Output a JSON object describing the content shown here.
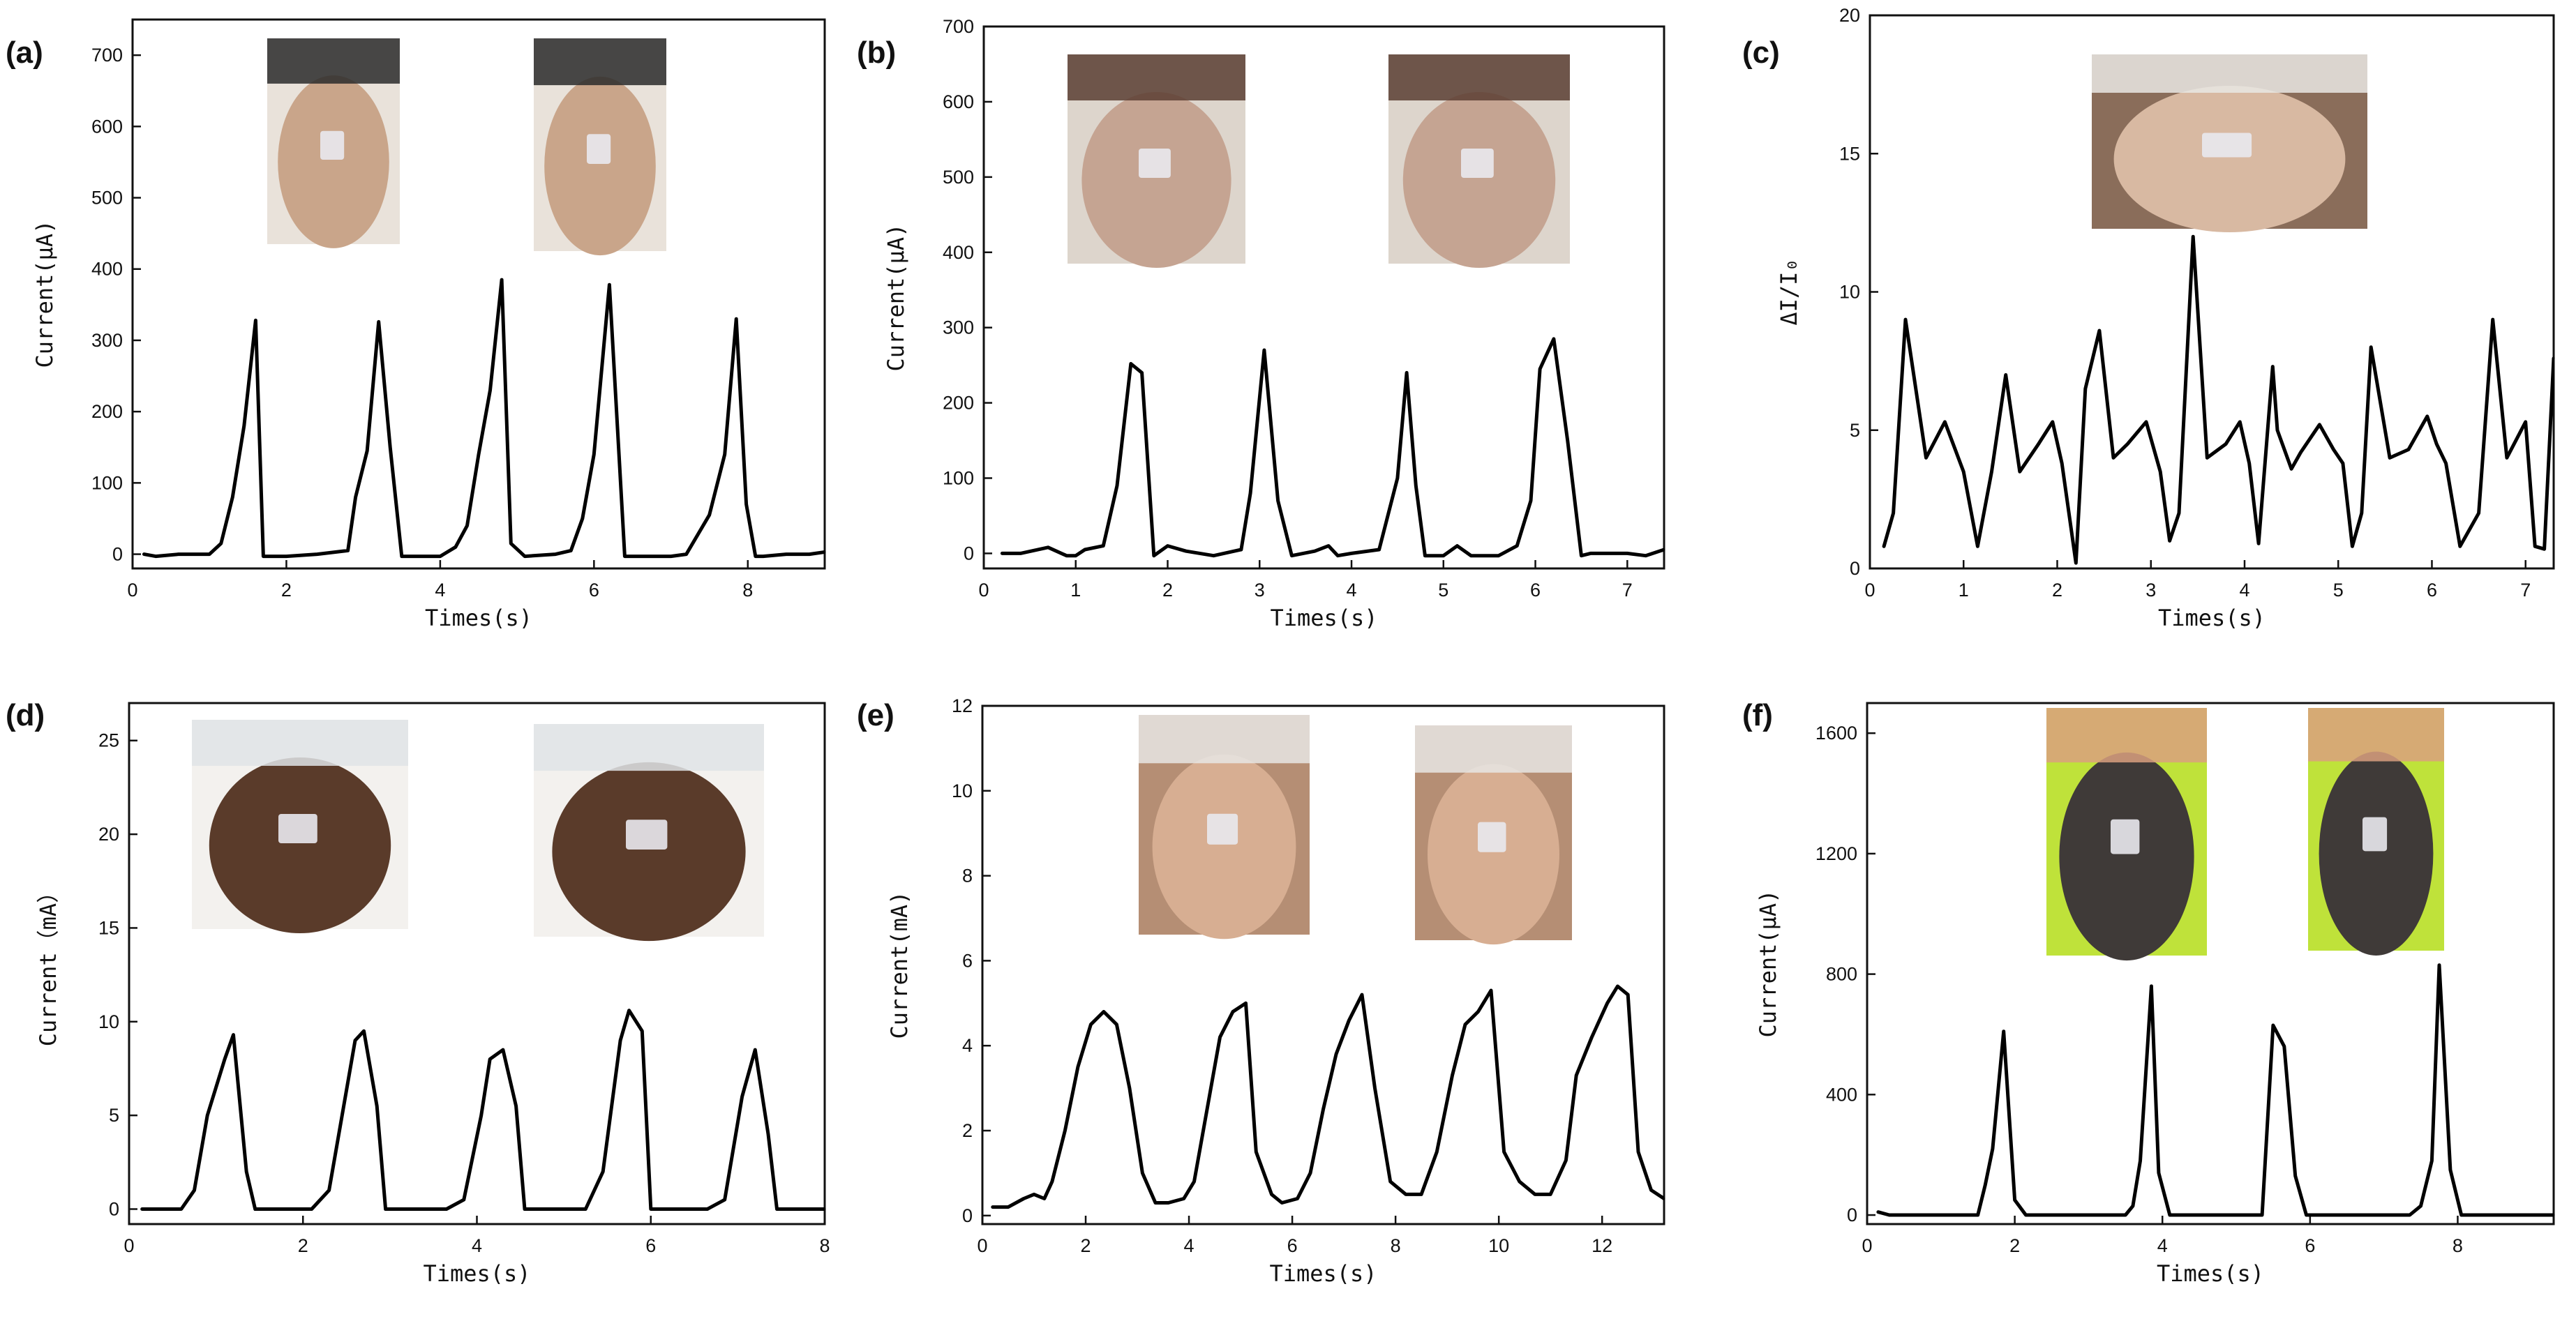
{
  "chart_data": [
    {
      "type": "line",
      "panel_label": "(a)",
      "xlabel": "Times(s)",
      "ylabel": "Current(μA)",
      "xlim": [
        0,
        9
      ],
      "ylim": [
        -20,
        750
      ],
      "xticks": [
        0,
        2,
        4,
        6,
        8
      ],
      "yticks": [
        0,
        100,
        200,
        300,
        400,
        500,
        600,
        700
      ],
      "x": [
        0.15,
        0.3,
        0.6,
        1.0,
        1.15,
        1.3,
        1.45,
        1.6,
        1.7,
        2.0,
        2.4,
        2.8,
        2.9,
        3.05,
        3.2,
        3.35,
        3.5,
        3.8,
        4.0,
        4.2,
        4.35,
        4.5,
        4.65,
        4.8,
        4.92,
        5.1,
        5.5,
        5.7,
        5.85,
        6.0,
        6.2,
        6.4,
        6.55,
        7.0,
        7.2,
        7.5,
        7.7,
        7.85,
        7.98,
        8.1,
        8.2,
        8.5,
        8.8,
        9.0
      ],
      "values": [
        0,
        -3,
        0,
        0,
        15,
        80,
        180,
        328,
        -3,
        -3,
        0,
        5,
        80,
        145,
        326,
        150,
        -3,
        -3,
        -3,
        10,
        40,
        140,
        230,
        385,
        15,
        -3,
        0,
        5,
        50,
        140,
        378,
        -3,
        -3,
        -3,
        0,
        55,
        140,
        330,
        70,
        -3,
        -3,
        0,
        0,
        3
      ],
      "inset_images": [
        {
          "description": "photo: face side view with sensor on cheek"
        },
        {
          "description": "photo: face with puffed cheek and sensor"
        }
      ]
    },
    {
      "type": "line",
      "panel_label": "(b)",
      "xlabel": "Times(s)",
      "ylabel": "Current(μA)",
      "xlim": [
        0,
        7.4
      ],
      "ylim": [
        -20,
        700
      ],
      "xticks": [
        0,
        1,
        2,
        3,
        4,
        5,
        6,
        7
      ],
      "yticks": [
        0,
        100,
        200,
        300,
        400,
        500,
        600,
        700
      ],
      "x": [
        0.2,
        0.4,
        0.7,
        0.9,
        1.0,
        1.1,
        1.3,
        1.45,
        1.6,
        1.72,
        1.85,
        2.0,
        2.2,
        2.5,
        2.8,
        2.9,
        3.05,
        3.2,
        3.35,
        3.6,
        3.75,
        3.85,
        4.0,
        4.3,
        4.5,
        4.6,
        4.7,
        4.8,
        5.0,
        5.15,
        5.3,
        5.6,
        5.8,
        5.95,
        6.05,
        6.2,
        6.35,
        6.5,
        6.6,
        7.0,
        7.2,
        7.4
      ],
      "values": [
        0,
        0,
        8,
        -3,
        -3,
        5,
        10,
        90,
        252,
        240,
        -3,
        10,
        3,
        -3,
        5,
        80,
        270,
        70,
        -3,
        3,
        10,
        -3,
        0,
        5,
        100,
        240,
        90,
        -3,
        -3,
        10,
        -3,
        -3,
        10,
        70,
        245,
        285,
        150,
        -3,
        0,
        0,
        -3,
        5
      ],
      "inset_images": [
        {
          "description": "photo: neck with sensor attached"
        },
        {
          "description": "photo: neck with sensor, swallowing"
        }
      ]
    },
    {
      "type": "line",
      "panel_label": "(c)",
      "xlabel": "Times(s)",
      "ylabel": "ΔI/I₀",
      "xlim": [
        0,
        7.3
      ],
      "ylim": [
        0,
        20
      ],
      "xticks": [
        0,
        1,
        2,
        3,
        4,
        5,
        6,
        7
      ],
      "yticks": [
        0,
        5,
        10,
        15,
        20
      ],
      "x": [
        0.15,
        0.25,
        0.38,
        0.6,
        0.8,
        1.0,
        1.15,
        1.3,
        1.45,
        1.6,
        1.8,
        1.95,
        2.05,
        2.2,
        2.3,
        2.45,
        2.6,
        2.75,
        2.95,
        3.1,
        3.2,
        3.3,
        3.45,
        3.6,
        3.8,
        3.95,
        4.05,
        4.15,
        4.3,
        4.35,
        4.5,
        4.6,
        4.8,
        4.95,
        5.05,
        5.15,
        5.25,
        5.35,
        5.55,
        5.75,
        5.95,
        6.05,
        6.15,
        6.3,
        6.5,
        6.65,
        6.8,
        7.0,
        7.1,
        7.2,
        7.3
      ],
      "values": [
        0.8,
        2,
        9,
        4,
        5.3,
        3.5,
        0.8,
        3.5,
        7,
        3.5,
        4.5,
        5.3,
        3.8,
        0.2,
        6.5,
        8.6,
        4,
        4.5,
        5.3,
        3.5,
        1,
        2,
        12,
        4,
        4.5,
        5.3,
        3.8,
        0.9,
        7.3,
        5,
        3.6,
        4.2,
        5.2,
        4.3,
        3.8,
        0.8,
        2,
        8,
        4,
        4.3,
        5.5,
        4.5,
        3.8,
        0.8,
        2,
        9,
        4,
        5.3,
        0.8,
        0.7,
        7.6
      ],
      "inset_images": [
        {
          "description": "photo: clenched fist with sensor on wrist"
        }
      ]
    },
    {
      "type": "line",
      "panel_label": "(d)",
      "xlabel": "Times(s)",
      "ylabel": "Current（mA）",
      "xlim": [
        0,
        8
      ],
      "ylim": [
        -0.8,
        27
      ],
      "xticks": [
        0,
        2,
        4,
        6,
        8
      ],
      "yticks": [
        0,
        5,
        10,
        15,
        20,
        25
      ],
      "x": [
        0.15,
        0.5,
        0.6,
        0.75,
        0.9,
        1.1,
        1.2,
        1.35,
        1.45,
        1.9,
        2.1,
        2.3,
        2.45,
        2.6,
        2.7,
        2.85,
        2.95,
        3.5,
        3.65,
        3.85,
        4.05,
        4.15,
        4.3,
        4.45,
        4.55,
        5.0,
        5.25,
        5.45,
        5.65,
        5.75,
        5.9,
        6.0,
        6.5,
        6.65,
        6.85,
        7.05,
        7.2,
        7.35,
        7.45,
        8.0
      ],
      "values": [
        0,
        0,
        0,
        1,
        5,
        8,
        9.3,
        2,
        0,
        0,
        0,
        1,
        5,
        9,
        9.5,
        5.5,
        0,
        0,
        0,
        0.5,
        5,
        8,
        8.5,
        5.5,
        0,
        0,
        0,
        2,
        9,
        10.6,
        9.5,
        0,
        0,
        0,
        0.5,
        6,
        8.5,
        4,
        0,
        0
      ],
      "inset_images": [
        {
          "description": "photo: finger pressing sensor on glass disc"
        },
        {
          "description": "photo: finger pressing sensor harder"
        }
      ]
    },
    {
      "type": "line",
      "panel_label": "(e)",
      "xlabel": "Times(s)",
      "ylabel": "Current(mA)",
      "xlim": [
        0,
        13.2
      ],
      "ylim": [
        -0.2,
        12
      ],
      "xticks": [
        0,
        2,
        4,
        6,
        8,
        10,
        12
      ],
      "yticks": [
        0,
        2,
        4,
        6,
        8,
        10,
        12
      ],
      "x": [
        0.2,
        0.5,
        0.8,
        1.0,
        1.2,
        1.35,
        1.6,
        1.85,
        2.1,
        2.35,
        2.6,
        2.85,
        3.1,
        3.35,
        3.6,
        3.9,
        4.1,
        4.35,
        4.6,
        4.85,
        5.1,
        5.3,
        5.6,
        5.8,
        6.1,
        6.35,
        6.6,
        6.85,
        7.1,
        7.35,
        7.6,
        7.9,
        8.2,
        8.5,
        8.8,
        9.1,
        9.35,
        9.6,
        9.85,
        10.1,
        10.4,
        10.7,
        11.0,
        11.3,
        11.5,
        11.8,
        12.1,
        12.3,
        12.5,
        12.7,
        12.95,
        13.2
      ],
      "values": [
        0.2,
        0.2,
        0.4,
        0.5,
        0.4,
        0.8,
        2,
        3.5,
        4.5,
        4.8,
        4.5,
        3,
        1,
        0.3,
        0.3,
        0.4,
        0.8,
        2.5,
        4.2,
        4.8,
        5,
        1.5,
        0.5,
        0.3,
        0.4,
        1,
        2.5,
        3.8,
        4.6,
        5.2,
        3,
        0.8,
        0.5,
        0.5,
        1.5,
        3.3,
        4.5,
        4.8,
        5.3,
        1.5,
        0.8,
        0.5,
        0.5,
        1.3,
        3.3,
        4.2,
        5,
        5.4,
        5.2,
        1.5,
        0.6,
        0.4
      ],
      "inset_images": [
        {
          "description": "photo: straight arm with sensor"
        },
        {
          "description": "photo: flexed arm showing biceps"
        }
      ]
    },
    {
      "type": "line",
      "panel_label": "(f)",
      "xlabel": "Times(s)",
      "ylabel": "Current(μA)",
      "xlim": [
        0,
        9.3
      ],
      "ylim": [
        -30,
        1700
      ],
      "xticks": [
        0,
        2,
        4,
        6,
        8
      ],
      "yticks": [
        0,
        400,
        800,
        1200,
        1600
      ],
      "x": [
        0.15,
        0.3,
        0.6,
        1.0,
        1.5,
        1.6,
        1.7,
        1.85,
        2.0,
        2.15,
        2.5,
        3.0,
        3.5,
        3.6,
        3.7,
        3.85,
        3.95,
        4.1,
        4.5,
        5.0,
        5.35,
        5.5,
        5.65,
        5.8,
        5.95,
        6.3,
        7.0,
        7.35,
        7.5,
        7.65,
        7.75,
        7.9,
        8.05,
        8.5,
        9.3
      ],
      "values": [
        10,
        0,
        0,
        0,
        0,
        100,
        220,
        610,
        50,
        0,
        0,
        0,
        0,
        30,
        180,
        760,
        140,
        0,
        0,
        0,
        0,
        630,
        560,
        130,
        0,
        0,
        0,
        0,
        30,
        180,
        830,
        150,
        0,
        0,
        0
      ],
      "inset_images": [
        {
          "description": "photo: legs standing with sensor on calf"
        },
        {
          "description": "photo: leg on tiptoe with sensor on calf"
        }
      ]
    }
  ]
}
